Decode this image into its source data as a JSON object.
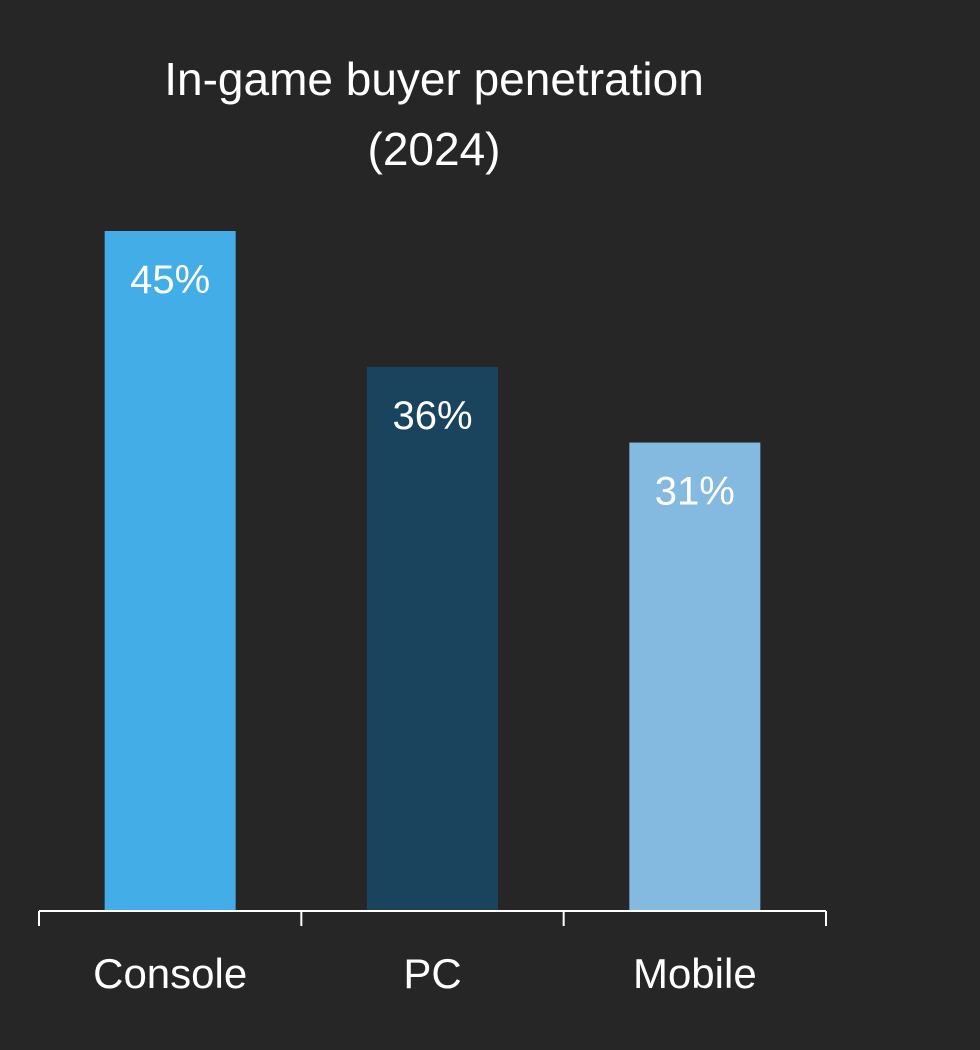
{
  "chart_data": {
    "type": "bar",
    "title": "In-game buyer penetration",
    "subtitle": "(2024)",
    "xlabel": "",
    "ylabel": "",
    "categories": [
      "Console",
      "PC",
      "Mobile"
    ],
    "values": [
      45,
      36,
      31
    ],
    "data_labels": [
      "45%",
      "36%",
      "31%"
    ],
    "ylim": [
      0,
      45
    ],
    "grid": false,
    "legend": "none",
    "colors": [
      "#42ADE6",
      "#1A445E",
      "#84BAE0"
    ]
  },
  "style": {
    "background": "#262626",
    "axis_color": "#ffffff",
    "text_color": "#ffffff"
  }
}
